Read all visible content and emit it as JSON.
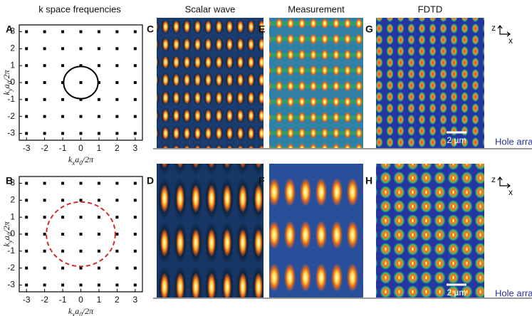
{
  "column_titles": [
    "k space frequencies",
    "Scalar wave",
    "Measurement",
    "FDTD"
  ],
  "kspace_axes": {
    "xlabel": [
      "k",
      "x",
      "a",
      "0",
      "/2π"
    ],
    "ylabel": [
      "k",
      "y",
      "a",
      "0",
      "/2π"
    ],
    "xlim": [
      -3.4,
      3.4
    ],
    "ylim": [
      -3.4,
      3.4
    ],
    "xticks": [
      -3,
      -2,
      -1,
      0,
      1,
      2,
      3
    ],
    "yticks": [
      -3,
      -2,
      -1,
      0,
      1,
      2,
      3
    ]
  },
  "rows": [
    {
      "kspace_label": "A",
      "circle": {
        "radius": 0.95,
        "style": "solid",
        "color": "#000000"
      },
      "panel_labels": [
        "C",
        "E",
        "G"
      ],
      "scale_bar": "2 µm",
      "axes": [
        "z",
        "x"
      ],
      "tag": "Hole array"
    },
    {
      "kspace_label": "B",
      "circle": {
        "radius": 1.9,
        "style": "dashed",
        "color": "#d22b2b"
      },
      "panel_labels": [
        "D",
        "F",
        "H"
      ],
      "scale_bar": "2 µm",
      "axes": [
        "z",
        "x"
      ],
      "tag": "Hole array"
    }
  ]
}
